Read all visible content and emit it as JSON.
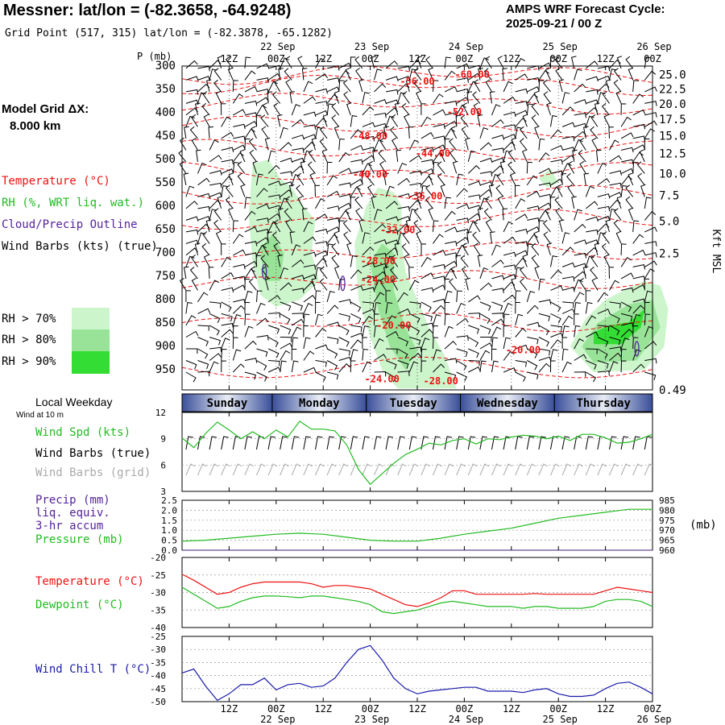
{
  "header": {
    "title": "Messner:  lat/lon = (-82.3658, -64.9248)",
    "grid_point": "Grid Point (517, 315) lat/lon = (-82.3878, -65.1282)",
    "forecast_label": "AMPS WRF Forecast Cycle:",
    "forecast_cycle": "2025-09-21 / 00  Z"
  },
  "model": {
    "grid_label": "Model Grid ΔX:",
    "grid_value": "8.000 km"
  },
  "legend": {
    "temperature": "Temperature (°C)",
    "rh": "RH (%, WRT liq. wat.)",
    "cloud": "Cloud/Precip Outline",
    "wind": "Wind Barbs (kts) (true)",
    "rh70": "RH > 70%",
    "rh80": "RH > 80%",
    "rh90": "RH > 90%"
  },
  "colors": {
    "temperature": "#ee1111",
    "rh70": "#ccf5cc",
    "rh80": "#99e399",
    "rh90": "#33dd33",
    "cloud": "#552299",
    "wind_speed": "#22bb22",
    "pressure": "#22bb22",
    "dewpoint": "#22bb22",
    "wind_chill": "#1a1aaa",
    "grid_barbs": "#aaaaaa",
    "weekday_bar": "#3a4f9a"
  },
  "chart_data": [
    {
      "type": "contour",
      "name": "cross-section",
      "y_axis_label": "P (mb)",
      "y_axis_right_label": "Kft MSL",
      "pressure_ticks": [
        300,
        350,
        400,
        450,
        500,
        550,
        600,
        650,
        700,
        750,
        800,
        850,
        900,
        950
      ],
      "height_ticks_kft": [
        "25.0",
        "22.5",
        "20.0",
        "17.5",
        "15.0",
        "12.5",
        "10.0",
        "7.5",
        "5.0",
        "2.5",
        "0.49"
      ],
      "height_tick_pressure": [
        318,
        349,
        381,
        414,
        449,
        487,
        530,
        577,
        632,
        701,
        993
      ],
      "x_ticks_top": [
        "12Z",
        "00Z",
        "12Z",
        "00Z",
        "12Z",
        "00Z",
        "12Z",
        "00Z",
        "12Z",
        "00Z"
      ],
      "x_dates_top": [
        "22 Sep",
        "23 Sep",
        "24 Sep",
        "25 Sep",
        "26 Sep"
      ],
      "temperature_labels": [
        {
          "label": "-60.00",
          "hour": 74,
          "p": 318
        },
        {
          "label": "-56.00",
          "hour": 60,
          "p": 333
        },
        {
          "label": "-52.00",
          "hour": 72,
          "p": 398
        },
        {
          "label": "-48.00",
          "hour": 48,
          "p": 450
        },
        {
          "label": "-44.00",
          "hour": 64,
          "p": 487
        },
        {
          "label": "-40.00",
          "hour": 48,
          "p": 532
        },
        {
          "label": "-36.00",
          "hour": 62,
          "p": 578
        },
        {
          "label": "-32.00",
          "hour": 55,
          "p": 651
        },
        {
          "label": "-28.00",
          "hour": 50,
          "p": 717
        },
        {
          "label": "-24.00",
          "hour": 50,
          "p": 757
        },
        {
          "label": "-20.00",
          "hour": 54,
          "p": 855
        },
        {
          "label": "-20.00",
          "hour": 87,
          "p": 908
        },
        {
          "label": "-24.00",
          "hour": 51,
          "p": 970
        },
        {
          "label": "-28.00",
          "hour": 66,
          "p": 974
        }
      ],
      "temperature_levels": [
        -60,
        -56,
        -52,
        -48,
        -44,
        -40,
        -36,
        -32,
        -28,
        -24,
        -20
      ],
      "rh_regions": [
        {
          "class": ">70",
          "points": [
            [
              18,
              510
            ],
            [
              22,
              500
            ],
            [
              25,
              540
            ],
            [
              28,
              560
            ],
            [
              31,
              600
            ],
            [
              34,
              630
            ],
            [
              33,
              700
            ],
            [
              35,
              760
            ],
            [
              30,
              800
            ],
            [
              24,
              815
            ],
            [
              20,
              790
            ],
            [
              18,
              720
            ],
            [
              17,
              620
            ]
          ]
        },
        {
          "class": ">70",
          "points": [
            [
              44,
              680
            ],
            [
              47,
              600
            ],
            [
              50,
              560
            ],
            [
              54,
              570
            ],
            [
              56,
              600
            ],
            [
              56,
              680
            ],
            [
              57,
              740
            ],
            [
              60,
              800
            ],
            [
              63,
              860
            ],
            [
              67,
              920
            ],
            [
              70,
              990
            ],
            [
              55,
              990
            ],
            [
              51,
              950
            ],
            [
              48,
              880
            ],
            [
              45,
              800
            ]
          ]
        },
        {
          "class": ">70",
          "points": [
            [
              99,
              900
            ],
            [
              103,
              840
            ],
            [
              108,
              800
            ],
            [
              114,
              775
            ],
            [
              118,
              760
            ],
            [
              122,
              770
            ],
            [
              124,
              820
            ],
            [
              123,
              900
            ],
            [
              118,
              950
            ],
            [
              105,
              955
            ]
          ]
        },
        {
          "class": ">70",
          "points": [
            [
              91,
              540
            ],
            [
              94,
              520
            ],
            [
              96,
              550
            ],
            [
              93,
              560
            ]
          ]
        },
        {
          "class": ">80",
          "points": [
            [
              20,
              690
            ],
            [
              23,
              660
            ],
            [
              26,
              700
            ],
            [
              25,
              760
            ],
            [
              21,
              760
            ]
          ]
        },
        {
          "class": ">80",
          "points": [
            [
              48,
              720
            ],
            [
              51,
              680
            ],
            [
              54,
              700
            ],
            [
              54,
              780
            ],
            [
              57,
              860
            ],
            [
              60,
              910
            ],
            [
              57,
              950
            ],
            [
              53,
              900
            ],
            [
              50,
              820
            ]
          ]
        },
        {
          "class": ">80",
          "points": [
            [
              102,
              900
            ],
            [
              106,
              850
            ],
            [
              114,
              810
            ],
            [
              120,
              800
            ],
            [
              122,
              860
            ],
            [
              116,
              930
            ],
            [
              105,
              935
            ]
          ]
        },
        {
          "class": ">90",
          "points": [
            [
              105,
              870
            ],
            [
              109,
              855
            ],
            [
              114,
              848
            ],
            [
              118,
              820
            ],
            [
              117,
              860
            ],
            [
              112,
              895
            ],
            [
              105,
              895
            ]
          ]
        }
      ],
      "cloud_outlines": [
        {
          "hour": 21,
          "p": 740
        },
        {
          "hour": 41,
          "p": 765
        },
        {
          "hour": 116,
          "p": 905
        }
      ]
    },
    {
      "type": "weekday_bar",
      "name": "local-weekday",
      "title": "Local Weekday",
      "days": [
        "Sunday",
        "Monday",
        "Tuesday",
        "Wednesday",
        "Thursday"
      ],
      "day_start_hour": [
        0,
        23,
        47,
        71,
        95
      ],
      "day_end_hour": [
        23,
        47,
        71,
        95,
        120
      ]
    },
    {
      "type": "line",
      "name": "wind-10m",
      "subtitle": "Wind at 10 m",
      "series_labels": [
        "Wind Spd (kts)",
        "Wind Barbs (true)",
        "Wind Barbs (grid)"
      ],
      "y_ticks": [
        12,
        9,
        6,
        3
      ],
      "ylim": [
        3,
        12
      ],
      "x_hours": [
        0,
        3,
        6,
        9,
        12,
        15,
        18,
        21,
        24,
        27,
        30,
        33,
        36,
        39,
        42,
        45,
        48,
        51,
        54,
        57,
        60,
        63,
        66,
        69,
        72,
        75,
        78,
        81,
        84,
        87,
        90,
        93,
        96,
        99,
        102,
        105,
        108,
        111,
        114,
        117,
        120
      ],
      "wind_speed_kts": [
        9.1,
        8.0,
        9.6,
        10.9,
        10.0,
        9.0,
        9.8,
        9.0,
        10.0,
        9.2,
        11.0,
        10.1,
        10.1,
        9.9,
        8.3,
        5.5,
        3.8,
        5.0,
        6.2,
        7.2,
        7.8,
        8.5,
        8.3,
        8.8,
        9.0,
        8.4,
        9.0,
        8.9,
        9.2,
        9.4,
        9.3,
        9.0,
        9.3,
        8.8,
        9.5,
        9.5,
        9.1,
        8.5,
        8.6,
        9.0,
        9.5
      ]
    },
    {
      "type": "line",
      "name": "precip-pressure",
      "series_labels": [
        "Precip (mm)",
        "liq. equiv.",
        "3-hr accum",
        "Pressure (mb)"
      ],
      "y_left_ticks": [
        "2.5",
        "2.0",
        "1.5",
        "1.0",
        "0.5",
        "0.0"
      ],
      "ylim_left": [
        0,
        2.5
      ],
      "y_right_ticks": [
        "985",
        "980",
        "975",
        "970",
        "965",
        "960"
      ],
      "ylim_right": [
        960,
        985
      ],
      "right_unit": "(mb)",
      "x_hours": [
        0,
        6,
        12,
        18,
        24,
        30,
        36,
        42,
        48,
        54,
        60,
        66,
        72,
        78,
        84,
        90,
        96,
        102,
        108,
        114,
        120
      ],
      "pressure_mb": [
        964.5,
        965,
        966,
        967,
        968,
        968.5,
        968,
        966.5,
        965,
        964.5,
        964.5,
        966,
        968,
        969.5,
        971,
        973.5,
        976,
        977.5,
        979,
        980.5,
        980.5
      ],
      "precip_mm": [
        0,
        0,
        0,
        0,
        0,
        0,
        0,
        0,
        0,
        0,
        0,
        0,
        0,
        0,
        0,
        0,
        0,
        0,
        0,
        0,
        0
      ]
    },
    {
      "type": "line",
      "name": "temperature-dewpoint",
      "series_labels": [
        "Temperature (°C)",
        "Dewpoint (°C)"
      ],
      "y_ticks": [
        -20,
        -25,
        -30,
        -35,
        -40
      ],
      "ylim": [
        -40,
        -20
      ],
      "x_hours": [
        0,
        3,
        6,
        9,
        12,
        15,
        18,
        21,
        24,
        27,
        30,
        33,
        36,
        39,
        42,
        45,
        48,
        51,
        54,
        57,
        60,
        63,
        66,
        69,
        72,
        75,
        78,
        81,
        84,
        87,
        90,
        93,
        96,
        99,
        102,
        105,
        108,
        111,
        114,
        117,
        120
      ],
      "temperature_c": [
        -24.8,
        -26.5,
        -28.5,
        -30.5,
        -30.0,
        -28.5,
        -27.5,
        -27.0,
        -27.0,
        -27.0,
        -27.0,
        -27.5,
        -28.5,
        -28.0,
        -28.0,
        -28.5,
        -29.0,
        -30.5,
        -32.0,
        -33.5,
        -34.0,
        -33.0,
        -31.5,
        -29.5,
        -29.5,
        -30.5,
        -30.5,
        -30.5,
        -30.5,
        -30.5,
        -30.3,
        -30.5,
        -30.5,
        -30.5,
        -30.5,
        -30.5,
        -29.5,
        -28.5,
        -29.0,
        -29.5,
        -30.0
      ],
      "dewpoint_c": [
        -28.5,
        -30.5,
        -32.5,
        -34.5,
        -34.0,
        -32.5,
        -31.5,
        -31.0,
        -31.0,
        -31.2,
        -31.5,
        -31.0,
        -31.0,
        -31.5,
        -32.0,
        -32.5,
        -33.5,
        -35.5,
        -36.0,
        -35.5,
        -35.0,
        -34.0,
        -33.0,
        -32.5,
        -33.0,
        -33.5,
        -34.0,
        -34.0,
        -34.0,
        -34.5,
        -34.0,
        -34.0,
        -34.5,
        -34.5,
        -34.5,
        -34.0,
        -32.5,
        -32.0,
        -32.0,
        -32.5,
        -34.0
      ]
    },
    {
      "type": "line",
      "name": "wind-chill",
      "series_labels": [
        "Wind Chill T (°C)"
      ],
      "y_ticks": [
        -25,
        -30,
        -35,
        -40,
        -45,
        -50
      ],
      "ylim": [
        -50,
        -25
      ],
      "x_ticks_bottom": [
        "12Z",
        "00Z",
        "12Z",
        "00Z",
        "12Z",
        "00Z",
        "12Z",
        "00Z",
        "12Z",
        "00Z"
      ],
      "x_dates_bottom": [
        "22 Sep",
        "23 Sep",
        "24 Sep",
        "25 Sep",
        "26 Sep"
      ],
      "x_hours": [
        0,
        3,
        6,
        9,
        12,
        15,
        18,
        21,
        24,
        27,
        30,
        33,
        36,
        39,
        42,
        45,
        48,
        51,
        54,
        57,
        60,
        63,
        66,
        69,
        72,
        75,
        78,
        81,
        84,
        87,
        90,
        93,
        96,
        99,
        102,
        105,
        108,
        111,
        114,
        117,
        120
      ],
      "wind_chill_c": [
        -39,
        -37.5,
        -44,
        -49.5,
        -47,
        -43.5,
        -43.5,
        -41,
        -45.5,
        -43.5,
        -43,
        -44.5,
        -44,
        -41,
        -35,
        -30,
        -28.5,
        -34,
        -41,
        -45,
        -47,
        -46,
        -45.5,
        -45,
        -44.5,
        -44.5,
        -46,
        -46,
        -46,
        -46.5,
        -45.5,
        -45,
        -47,
        -48,
        -48,
        -47.5,
        -45,
        -43,
        -42.5,
        -44.5,
        -47
      ]
    }
  ]
}
